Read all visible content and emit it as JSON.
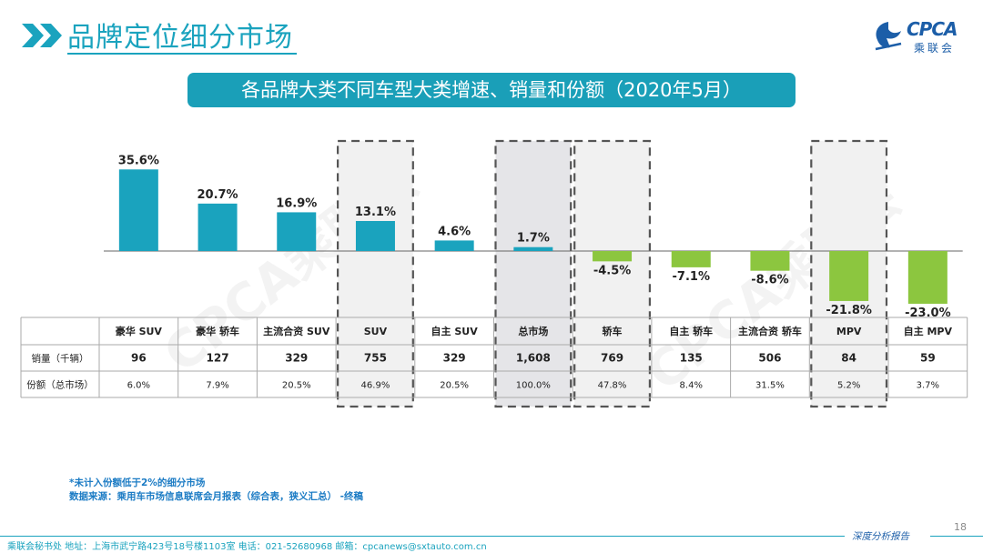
{
  "header": {
    "title": "品牌定位细分市场",
    "logo_text": "CPCA",
    "logo_subtext": "乘联会"
  },
  "subtitle": "各品牌大类不同车型大类增速、销量和份额（2020年5月）",
  "watermark": "CPCA乘联会",
  "chart_data": {
    "type": "bar",
    "title": "各品牌大类不同车型大类增速、销量和份额（2020年5月）",
    "categories": [
      "豪华 SUV",
      "豪华 轿车",
      "主流合资 SUV",
      "SUV",
      "自主 SUV",
      "总市场",
      "轿车",
      "自主 轿车",
      "主流合资 轿车",
      "MPV",
      "自主 MPV"
    ],
    "series": [
      {
        "name": "增速",
        "unit": "%",
        "values": [
          35.6,
          20.7,
          16.9,
          13.1,
          4.6,
          1.7,
          -4.5,
          -7.1,
          -8.6,
          -21.8,
          -23.0
        ]
      }
    ],
    "value_labels": [
      "35.6%",
      "20.7%",
      "16.9%",
      "13.1%",
      "4.6%",
      "1.7%",
      "-4.5%",
      "-7.1%",
      "-8.6%",
      "-21.8%",
      "-23.0%"
    ],
    "ylim": [
      -25,
      40
    ],
    "highlighted": [
      "SUV",
      "总市场",
      "轿车",
      "MPV"
    ],
    "colors": {
      "positive": "#1aa3be",
      "negative": "#8cc63f",
      "grid": "#666666",
      "dashed_box": "#555555",
      "market_fill": "#e5e5e8"
    },
    "table": {
      "rows": [
        {
          "label": "销量（千辆）",
          "values": [
            "96",
            "127",
            "329",
            "755",
            "329",
            "1,608",
            "769",
            "135",
            "506",
            "84",
            "59"
          ]
        },
        {
          "label": "份额（总市场）",
          "values": [
            "6.0%",
            "7.9%",
            "20.5%",
            "46.9%",
            "20.5%",
            "100.0%",
            "47.8%",
            "8.4%",
            "31.5%",
            "5.2%",
            "3.7%"
          ]
        }
      ]
    }
  },
  "footnotes": {
    "note": "*未计入份额低于2%的细分市场",
    "source": "数据来源：乘用车市场信息联席会月报表（综合表，狭义汇总） -终稿"
  },
  "page_number": "18",
  "footer": {
    "text": "乘联会秘书处   地址：上海市武宁路423号18号楼1103室   电话：021-52680968   邮箱：cpcanews@sxtauto.com.cn",
    "slogan": "深度分析报告"
  }
}
